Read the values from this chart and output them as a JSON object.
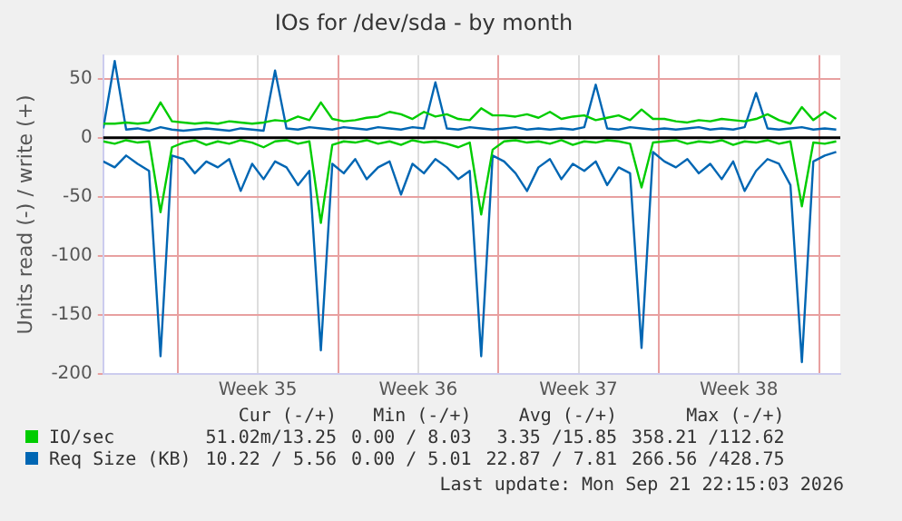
{
  "chart_data": {
    "type": "line",
    "title": "IOs for /dev/sda - by month",
    "ylabel": "Units read (-) / write (+)",
    "x": [
      "2026-08-20T18:00",
      "2026-08-21T06:00",
      "2026-08-21T18:00",
      "2026-08-22T06:00",
      "2026-08-22T18:00",
      "2026-08-23T06:00",
      "2026-08-23T18:00",
      "2026-08-24T06:00",
      "2026-08-24T18:00",
      "2026-08-25T06:00",
      "2026-08-25T18:00",
      "2026-08-26T06:00",
      "2026-08-26T18:00",
      "2026-08-27T06:00",
      "2026-08-27T18:00",
      "2026-08-28T06:00",
      "2026-08-28T18:00",
      "2026-08-29T06:00",
      "2026-08-29T18:00",
      "2026-08-30T06:00",
      "2026-08-30T18:00",
      "2026-08-31T06:00",
      "2026-08-31T18:00",
      "2026-09-01T06:00",
      "2026-09-01T18:00",
      "2026-09-02T06:00",
      "2026-09-02T18:00",
      "2026-09-03T06:00",
      "2026-09-03T18:00",
      "2026-09-04T06:00",
      "2026-09-04T18:00",
      "2026-09-05T06:00",
      "2026-09-05T18:00",
      "2026-09-06T06:00",
      "2026-09-06T18:00",
      "2026-09-07T06:00",
      "2026-09-07T18:00",
      "2026-09-08T06:00",
      "2026-09-08T18:00",
      "2026-09-09T06:00",
      "2026-09-09T18:00",
      "2026-09-10T06:00",
      "2026-09-10T18:00",
      "2026-09-11T06:00",
      "2026-09-11T18:00",
      "2026-09-12T06:00",
      "2026-09-12T18:00",
      "2026-09-13T06:00",
      "2026-09-13T18:00",
      "2026-09-14T06:00",
      "2026-09-14T18:00",
      "2026-09-15T06:00",
      "2026-09-15T18:00",
      "2026-09-16T06:00",
      "2026-09-16T18:00",
      "2026-09-17T06:00",
      "2026-09-17T18:00",
      "2026-09-18T06:00",
      "2026-09-18T18:00",
      "2026-09-19T06:00",
      "2026-09-19T18:00",
      "2026-09-20T06:00",
      "2026-09-20T18:00",
      "2026-09-21T06:00",
      "2026-09-21T18:00"
    ],
    "series": [
      {
        "name": "IO/sec",
        "color": "#00cc00",
        "values": [
          12,
          12,
          13,
          12,
          13,
          30,
          14,
          13,
          12,
          13,
          12,
          14,
          13,
          12,
          13,
          15,
          14,
          18,
          15,
          30,
          16,
          14,
          15,
          17,
          18,
          22,
          20,
          16,
          22,
          18,
          20,
          16,
          15,
          25,
          19,
          19,
          18,
          20,
          17,
          22,
          16,
          18,
          19,
          15,
          17,
          19,
          15,
          24,
          16,
          16,
          14,
          13,
          15,
          14,
          16,
          15,
          14,
          16,
          20,
          15,
          12,
          26,
          15,
          22,
          16
        ]
      },
      {
        "color": "#00cc00",
        "values": [
          -3,
          -5,
          -2,
          -4,
          -3,
          -63,
          -8,
          -4,
          -2,
          -6,
          -3,
          -5,
          -2,
          -4,
          -8,
          -3,
          -2,
          -5,
          -3,
          -72,
          -6,
          -3,
          -4,
          -2,
          -5,
          -3,
          -6,
          -2,
          -4,
          -3,
          -5,
          -8,
          -4,
          -65,
          -10,
          -3,
          -2,
          -4,
          -3,
          -5,
          -2,
          -6,
          -3,
          -4,
          -2,
          -3,
          -5,
          -42,
          -4,
          -3,
          -2,
          -5,
          -3,
          -4,
          -2,
          -6,
          -3,
          -4,
          -2,
          -5,
          -3,
          -58,
          -4,
          -5,
          -3
        ]
      },
      {
        "name": "Req Size (KB)",
        "color": "#0066b3",
        "values": [
          8,
          65,
          7,
          8,
          6,
          9,
          7,
          6,
          7,
          8,
          7,
          6,
          8,
          7,
          6,
          57,
          8,
          7,
          9,
          8,
          7,
          9,
          8,
          7,
          9,
          8,
          7,
          9,
          8,
          47,
          8,
          7,
          9,
          8,
          7,
          8,
          9,
          7,
          8,
          7,
          8,
          7,
          9,
          45,
          8,
          7,
          9,
          8,
          7,
          8,
          7,
          8,
          9,
          7,
          8,
          7,
          9,
          38,
          8,
          7,
          8,
          9,
          7,
          8,
          7
        ]
      },
      {
        "color": "#0066b3",
        "values": [
          -20,
          -25,
          -15,
          -22,
          -28,
          -185,
          -15,
          -18,
          -30,
          -20,
          -25,
          -18,
          -45,
          -22,
          -35,
          -20,
          -25,
          -40,
          -28,
          -180,
          -22,
          -30,
          -18,
          -35,
          -25,
          -20,
          -48,
          -22,
          -30,
          -18,
          -25,
          -35,
          -28,
          -185,
          -15,
          -20,
          -30,
          -45,
          -25,
          -18,
          -35,
          -22,
          -28,
          -20,
          -40,
          -25,
          -30,
          -178,
          -12,
          -20,
          -25,
          -18,
          -30,
          -22,
          -35,
          -20,
          -45,
          -28,
          -18,
          -22,
          -40,
          -190,
          -20,
          -15,
          -12
        ]
      }
    ],
    "xlim": [
      "2026-08-20T18:00",
      "2026-09-21T22:15"
    ],
    "xticks": [
      {
        "value": "2026-08-24T00:00",
        "label": null
      },
      {
        "value": "2026-08-27T12:00",
        "label": "Week 35"
      },
      {
        "value": "2026-08-31T00:00",
        "label": null
      },
      {
        "value": "2026-09-03T12:00",
        "label": "Week 36"
      },
      {
        "value": "2026-09-07T00:00",
        "label": null
      },
      {
        "value": "2026-09-10T12:00",
        "label": "Week 37"
      },
      {
        "value": "2026-09-14T00:00",
        "label": null
      },
      {
        "value": "2026-09-17T12:00",
        "label": "Week 38"
      },
      {
        "value": "2026-09-21T00:00",
        "label": null
      }
    ],
    "ylim": [
      -200,
      70
    ],
    "yticks": [
      -200,
      -150,
      -100,
      -50,
      0,
      50
    ],
    "ref_lines": [
      {
        "axis": "y",
        "value": 0,
        "color": "#000000"
      }
    ],
    "grid": true,
    "legend": "bottom left",
    "marker": "none",
    "line_style": "solid",
    "annotations": [
      "Cur (-/+)",
      "Min (-/+)",
      "Avg (-/+)",
      "Max (-/+)",
      "51.02m/13.25",
      "0.00 / 8.03",
      "3.35 /15.85",
      "358.21 /112.62",
      "10.22 / 5.56",
      "0.00 / 5.01",
      "22.87 / 7.81",
      "266.56 /428.75",
      "Last update: Mon Sep 21 22:15:03 2026"
    ]
  }
}
